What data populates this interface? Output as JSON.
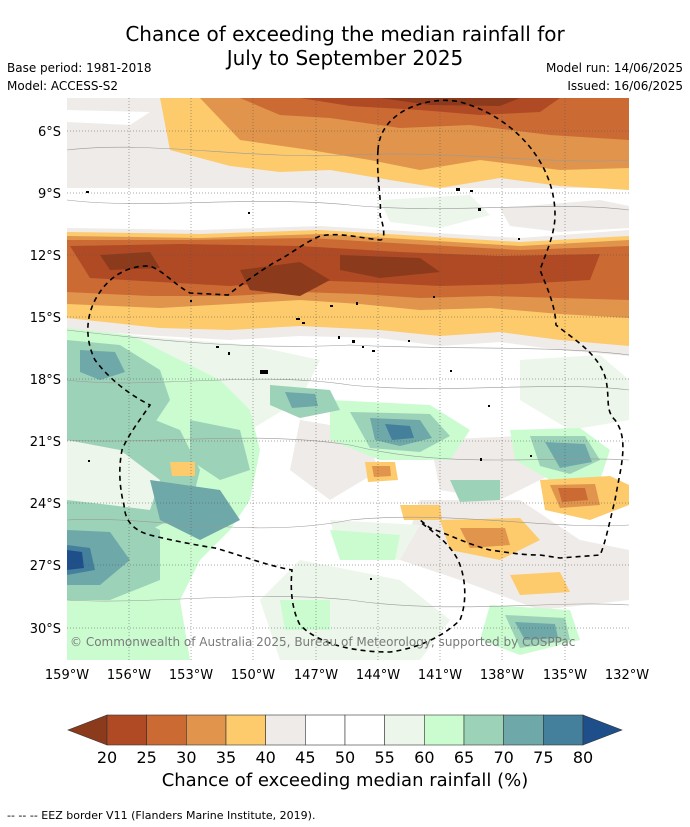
{
  "title_line1": "Chance of exceeding the median rainfall for",
  "title_line2": "July to September 2025",
  "base_period": "Base period: 1981-2018",
  "model": "Model: ACCESS-S2",
  "model_run": "Model run: 14/06/2025",
  "issued": "Issued: 16/06/2025",
  "copyright": "© Commonwealth of Australia 2025, Bureau of Meteorology, supported by COSPPac",
  "footer": "--  --  -- EEZ border V11 (Flanders Marine Institute, 2019).",
  "colorbar": {
    "title": "Chance of exceeding median rainfall (%)",
    "ticks": [
      "20",
      "25",
      "30",
      "35",
      "40",
      "45",
      "50",
      "55",
      "60",
      "65",
      "70",
      "75",
      "80"
    ],
    "colors": [
      "#8c3a1c",
      "#b04a24",
      "#cc6a34",
      "#e0944c",
      "#fdca6c",
      "#efebe8",
      "#ffffff",
      "#ffffff",
      "#ecf6ea",
      "#cafcd0",
      "#9cd2b8",
      "#6ea8a8",
      "#44809c",
      "#1f4f8a"
    ]
  },
  "map": {
    "lon_ticks": [
      "159°W",
      "156°W",
      "153°W",
      "150°W",
      "147°W",
      "144°W",
      "141°W",
      "138°W",
      "135°W",
      "132°W"
    ],
    "lat_ticks": [
      "6°S",
      "9°S",
      "12°S",
      "15°S",
      "18°S",
      "21°S",
      "24°S",
      "27°S",
      "30°S"
    ]
  }
}
